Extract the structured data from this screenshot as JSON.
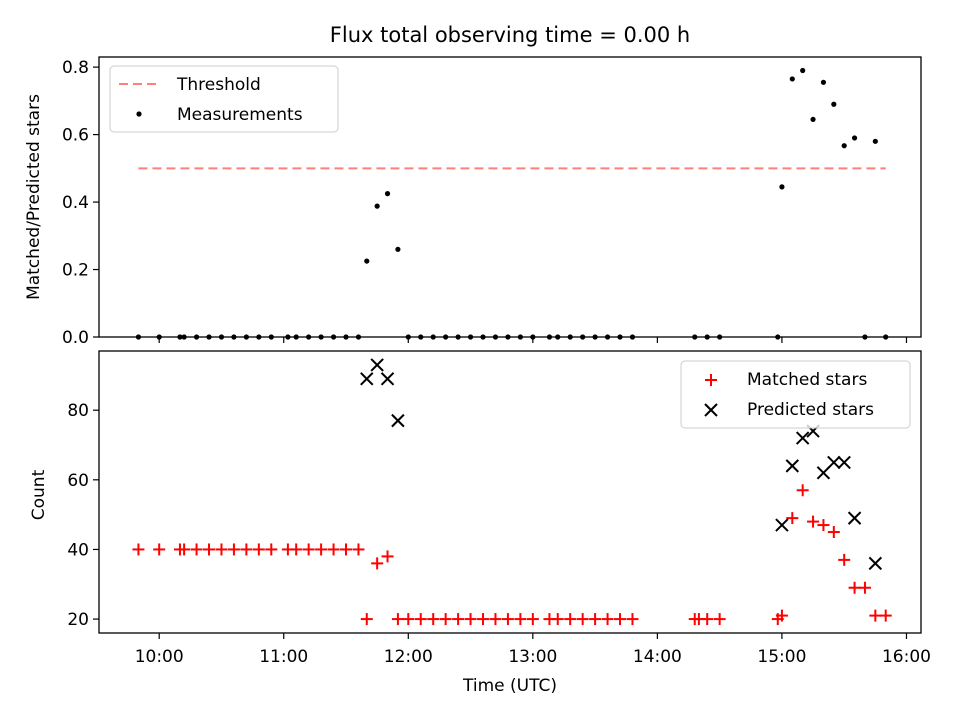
{
  "figure": {
    "title": "Flux total observing time = 0.00 h"
  },
  "chart_data": [
    {
      "type": "scatter",
      "ylabel": "Matched/Predicted stars",
      "ylim": [
        0,
        0.83
      ],
      "xlim": [
        "09:31",
        "16:07"
      ],
      "yticks": [
        0.0,
        0.2,
        0.4,
        0.6,
        0.8
      ],
      "ytick_labels": [
        "0.0",
        "0.2",
        "0.4",
        "0.6",
        "0.8"
      ],
      "legend_position": "upper left",
      "threshold": {
        "name": "Threshold",
        "value": 0.5,
        "x_range": [
          "09:50",
          "15:50"
        ],
        "color": "#ff7f7f"
      },
      "series": [
        {
          "name": "Measurements",
          "color": "#000000",
          "points": [
            [
              "09:50",
              0
            ],
            [
              "10:00",
              0
            ],
            [
              "10:10",
              0
            ],
            [
              "10:12",
              0
            ],
            [
              "10:18",
              0
            ],
            [
              "10:24",
              0
            ],
            [
              "10:30",
              0
            ],
            [
              "10:36",
              0
            ],
            [
              "10:42",
              0
            ],
            [
              "10:48",
              0
            ],
            [
              "10:54",
              0
            ],
            [
              "11:02",
              0
            ],
            [
              "11:06",
              0
            ],
            [
              "11:12",
              0
            ],
            [
              "11:18",
              0
            ],
            [
              "11:24",
              0
            ],
            [
              "11:30",
              0
            ],
            [
              "11:36",
              0
            ],
            [
              "11:40",
              0.225
            ],
            [
              "11:45",
              0.388
            ],
            [
              "11:50",
              0.425
            ],
            [
              "11:55",
              0.26
            ],
            [
              "12:00",
              0
            ],
            [
              "12:06",
              0
            ],
            [
              "12:12",
              0
            ],
            [
              "12:18",
              0
            ],
            [
              "12:24",
              0
            ],
            [
              "12:30",
              0
            ],
            [
              "12:36",
              0
            ],
            [
              "12:42",
              0
            ],
            [
              "12:48",
              0
            ],
            [
              "12:54",
              0
            ],
            [
              "13:00",
              0
            ],
            [
              "13:08",
              0
            ],
            [
              "13:12",
              0
            ],
            [
              "13:18",
              0
            ],
            [
              "13:24",
              0
            ],
            [
              "13:30",
              0
            ],
            [
              "13:36",
              0
            ],
            [
              "13:42",
              0
            ],
            [
              "13:48",
              0
            ],
            [
              "14:18",
              0
            ],
            [
              "14:24",
              0
            ],
            [
              "14:30",
              0
            ],
            [
              "14:58",
              0
            ],
            [
              "15:00",
              0.445
            ],
            [
              "15:05",
              0.765
            ],
            [
              "15:10",
              0.79
            ],
            [
              "15:15",
              0.645
            ],
            [
              "15:20",
              0.755
            ],
            [
              "15:25",
              0.69
            ],
            [
              "15:30",
              0.567
            ],
            [
              "15:35",
              0.59
            ],
            [
              "15:40",
              0
            ],
            [
              "15:45",
              0.58
            ],
            [
              "15:50",
              0
            ]
          ]
        }
      ]
    },
    {
      "type": "scatter",
      "xlabel": "Time (UTC)",
      "ylabel": "Count",
      "ylim": [
        16,
        97
      ],
      "xlim": [
        "09:31",
        "16:07"
      ],
      "xticks": [
        "10:00",
        "11:00",
        "12:00",
        "13:00",
        "14:00",
        "15:00",
        "16:00"
      ],
      "yticks": [
        20,
        40,
        60,
        80
      ],
      "ytick_labels": [
        "20",
        "40",
        "60",
        "80"
      ],
      "legend_position": "upper right",
      "series": [
        {
          "name": "Matched stars",
          "marker": "plus",
          "color": "#ff0000",
          "points": [
            [
              "09:50",
              40
            ],
            [
              "10:00",
              40
            ],
            [
              "10:10",
              40
            ],
            [
              "10:12",
              40
            ],
            [
              "10:18",
              40
            ],
            [
              "10:24",
              40
            ],
            [
              "10:30",
              40
            ],
            [
              "10:36",
              40
            ],
            [
              "10:42",
              40
            ],
            [
              "10:48",
              40
            ],
            [
              "10:54",
              40
            ],
            [
              "11:02",
              40
            ],
            [
              "11:06",
              40
            ],
            [
              "11:12",
              40
            ],
            [
              "11:18",
              40
            ],
            [
              "11:24",
              40
            ],
            [
              "11:30",
              40
            ],
            [
              "11:36",
              40
            ],
            [
              "11:40",
              20
            ],
            [
              "11:45",
              36
            ],
            [
              "11:50",
              38
            ],
            [
              "11:55",
              20
            ],
            [
              "12:00",
              20
            ],
            [
              "12:06",
              20
            ],
            [
              "12:12",
              20
            ],
            [
              "12:18",
              20
            ],
            [
              "12:24",
              20
            ],
            [
              "12:30",
              20
            ],
            [
              "12:36",
              20
            ],
            [
              "12:42",
              20
            ],
            [
              "12:48",
              20
            ],
            [
              "12:54",
              20
            ],
            [
              "13:00",
              20
            ],
            [
              "13:08",
              20
            ],
            [
              "13:12",
              20
            ],
            [
              "13:18",
              20
            ],
            [
              "13:24",
              20
            ],
            [
              "13:30",
              20
            ],
            [
              "13:36",
              20
            ],
            [
              "13:42",
              20
            ],
            [
              "13:48",
              20
            ],
            [
              "14:18",
              20
            ],
            [
              "14:20",
              20
            ],
            [
              "14:24",
              20
            ],
            [
              "14:30",
              20
            ],
            [
              "14:58",
              20
            ],
            [
              "15:00",
              21
            ],
            [
              "15:05",
              49
            ],
            [
              "15:10",
              57
            ],
            [
              "15:15",
              48
            ],
            [
              "15:20",
              47
            ],
            [
              "15:25",
              45
            ],
            [
              "15:30",
              37
            ],
            [
              "15:35",
              29
            ],
            [
              "15:40",
              29
            ],
            [
              "15:45",
              21
            ],
            [
              "15:50",
              21
            ]
          ]
        },
        {
          "name": "Predicted stars",
          "marker": "x",
          "color": "#000000",
          "points": [
            [
              "11:40",
              89
            ],
            [
              "11:45",
              93
            ],
            [
              "11:50",
              89
            ],
            [
              "11:55",
              77
            ],
            [
              "15:00",
              47
            ],
            [
              "15:05",
              64
            ],
            [
              "15:10",
              72
            ],
            [
              "15:15",
              74
            ],
            [
              "15:20",
              62
            ],
            [
              "15:25",
              65
            ],
            [
              "15:30",
              65
            ],
            [
              "15:35",
              49
            ],
            [
              "15:45",
              36
            ]
          ]
        }
      ]
    }
  ]
}
